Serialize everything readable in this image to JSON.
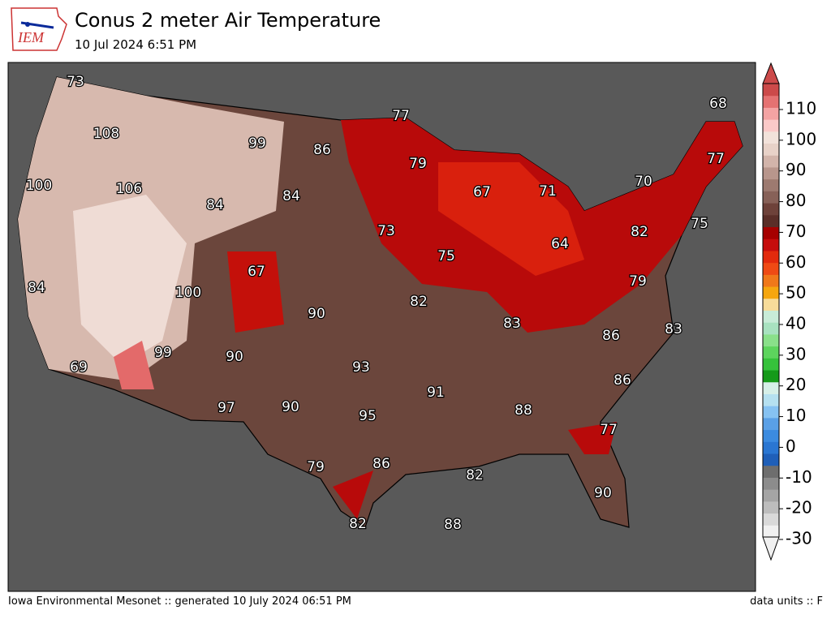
{
  "header": {
    "logo_text": "IEM",
    "title": "Conus 2 meter Air Temperature",
    "subtitle": "10 Jul 2024 6:51 PM"
  },
  "map": {
    "labels": [
      73,
      108,
      100,
      106,
      84,
      69,
      99,
      86,
      84,
      84,
      67,
      100,
      90,
      99,
      90,
      93,
      97,
      90,
      95,
      91,
      79,
      86,
      82,
      88,
      82,
      88,
      90,
      77,
      86,
      86,
      83,
      83,
      82,
      75,
      73,
      79,
      77,
      67,
      71,
      64,
      70,
      82,
      79,
      75,
      77,
      68
    ]
  },
  "colorbar": {
    "ticks": [
      -30,
      -20,
      -10,
      0,
      10,
      20,
      30,
      40,
      50,
      60,
      70,
      80,
      90,
      100,
      110
    ],
    "colors": [
      "#f0f0f0",
      "#d9d9d9",
      "#bdbdbd",
      "#a5a5a5",
      "#8c8c8c",
      "#6e6e6e",
      "#1f5fb8",
      "#2a76d2",
      "#3b8be0",
      "#5aa0e6",
      "#86c2f2",
      "#b5e0f0",
      "#d6efe8",
      "#159a19",
      "#36c23b",
      "#5dd45d",
      "#8ae08a",
      "#a8e2c0",
      "#c8ecd8",
      "#f7dc9a",
      "#f5a60f",
      "#f0781a",
      "#ef4a14",
      "#e22a0d",
      "#c60d0d",
      "#a60000",
      "#5a2e28",
      "#6e423a",
      "#876158",
      "#9d7a70",
      "#b8968c",
      "#d2b4aa",
      "#e8d2c8",
      "#f2e2da",
      "#fbc9c8",
      "#f4a3a3",
      "#e57272",
      "#cc4a4a"
    ]
  },
  "footer": {
    "left": "Iowa Environmental Mesonet :: generated 10 July 2024 06:51 PM",
    "right": "data units :: F"
  }
}
